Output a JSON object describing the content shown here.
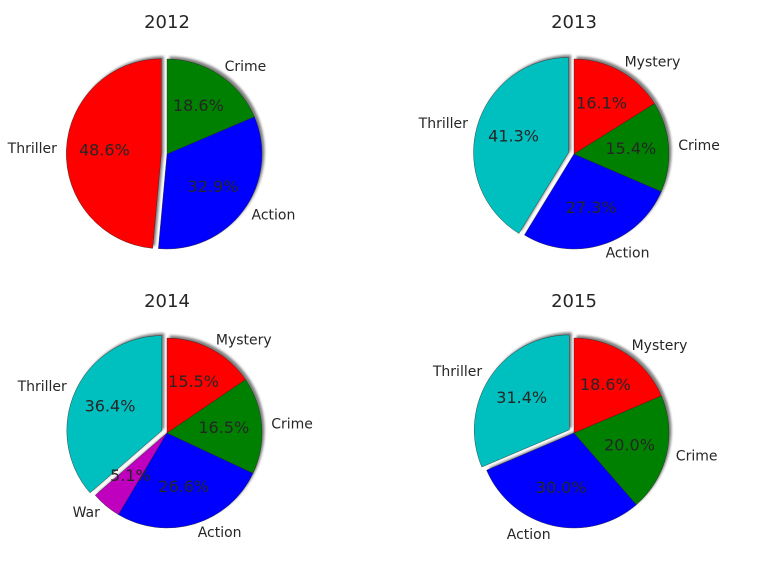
{
  "chart_data": [
    {
      "type": "pie",
      "title": "2012",
      "slices": [
        {
          "label": "Thriller",
          "value": 48.6,
          "pct_label": "48.6%",
          "color": "#ff0000",
          "exploded": true
        },
        {
          "label": "Action",
          "value": 32.9,
          "pct_label": "32.9%",
          "color": "#0000ff",
          "exploded": false
        },
        {
          "label": "Crime",
          "value": 18.6,
          "pct_label": "18.6%",
          "color": "#008000",
          "exploded": false
        }
      ]
    },
    {
      "type": "pie",
      "title": "2013",
      "slices": [
        {
          "label": "Thriller",
          "value": 41.3,
          "pct_label": "41.3%",
          "color": "#00bfbf",
          "exploded": true
        },
        {
          "label": "Action",
          "value": 27.3,
          "pct_label": "27.3%",
          "color": "#0000ff",
          "exploded": false
        },
        {
          "label": "Crime",
          "value": 15.4,
          "pct_label": "15.4%",
          "color": "#008000",
          "exploded": false
        },
        {
          "label": "Mystery",
          "value": 16.1,
          "pct_label": "16.1%",
          "color": "#ff0000",
          "exploded": false
        }
      ]
    },
    {
      "type": "pie",
      "title": "2014",
      "slices": [
        {
          "label": "Thriller",
          "value": 36.4,
          "pct_label": "36.4%",
          "color": "#00bfbf",
          "exploded": true
        },
        {
          "label": "War",
          "value": 5.1,
          "pct_label": "5.1%",
          "color": "#bf00bf",
          "exploded": false
        },
        {
          "label": "Action",
          "value": 26.6,
          "pct_label": "26.6%",
          "color": "#0000ff",
          "exploded": false
        },
        {
          "label": "Crime",
          "value": 16.5,
          "pct_label": "16.5%",
          "color": "#008000",
          "exploded": false
        },
        {
          "label": "Mystery",
          "value": 15.5,
          "pct_label": "15.5%",
          "color": "#ff0000",
          "exploded": false
        }
      ]
    },
    {
      "type": "pie",
      "title": "2015",
      "slices": [
        {
          "label": "Thriller",
          "value": 31.4,
          "pct_label": "31.4%",
          "color": "#00bfbf",
          "exploded": true
        },
        {
          "label": "Action",
          "value": 30.0,
          "pct_label": "30.0%",
          "color": "#0000ff",
          "exploded": false
        },
        {
          "label": "Crime",
          "value": 20.0,
          "pct_label": "20.0%",
          "color": "#008000",
          "exploded": false
        },
        {
          "label": "Mystery",
          "value": 18.6,
          "pct_label": "18.6%",
          "color": "#ff0000",
          "exploded": false
        }
      ]
    }
  ]
}
